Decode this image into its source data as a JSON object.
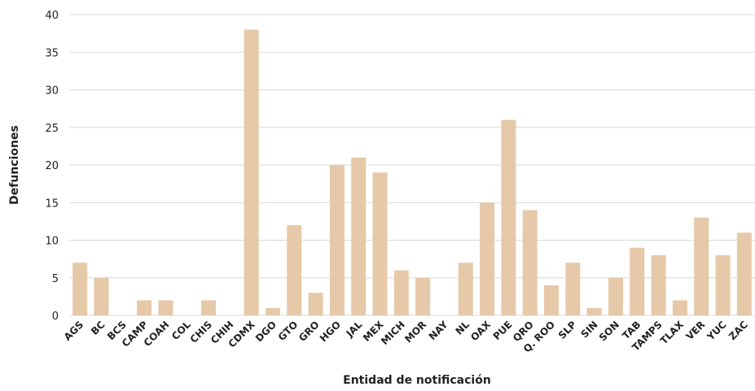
{
  "chart_data": {
    "type": "bar",
    "x_label": "Entidad de notificación",
    "y_label": "Defunciones",
    "categories": [
      "AGS",
      "BC",
      "BCS",
      "CAMP",
      "COAH",
      "COL",
      "CHIS",
      "CHIH",
      "CDMX",
      "DGO",
      "GTO",
      "GRO",
      "HGO",
      "JAL",
      "MEX",
      "MICH",
      "MOR",
      "NAY",
      "NL",
      "OAX",
      "PUE",
      "QRO",
      "Q. ROO",
      "SLP",
      "SIN",
      "SON",
      "TAB",
      "TAMPS",
      "TLAX",
      "VER",
      "YUC",
      "ZAC"
    ],
    "values": [
      7,
      5,
      0,
      2,
      2,
      0,
      2,
      0,
      38,
      1,
      12,
      3,
      20,
      21,
      19,
      6,
      5,
      0,
      7,
      15,
      26,
      14,
      4,
      7,
      1,
      5,
      9,
      8,
      2,
      13,
      8,
      11
    ],
    "color": "#e6c9a8",
    "ylim": [
      0,
      40
    ],
    "yticks": [
      0,
      5,
      10,
      15,
      20,
      25,
      30,
      35,
      40
    ],
    "grid": true
  }
}
